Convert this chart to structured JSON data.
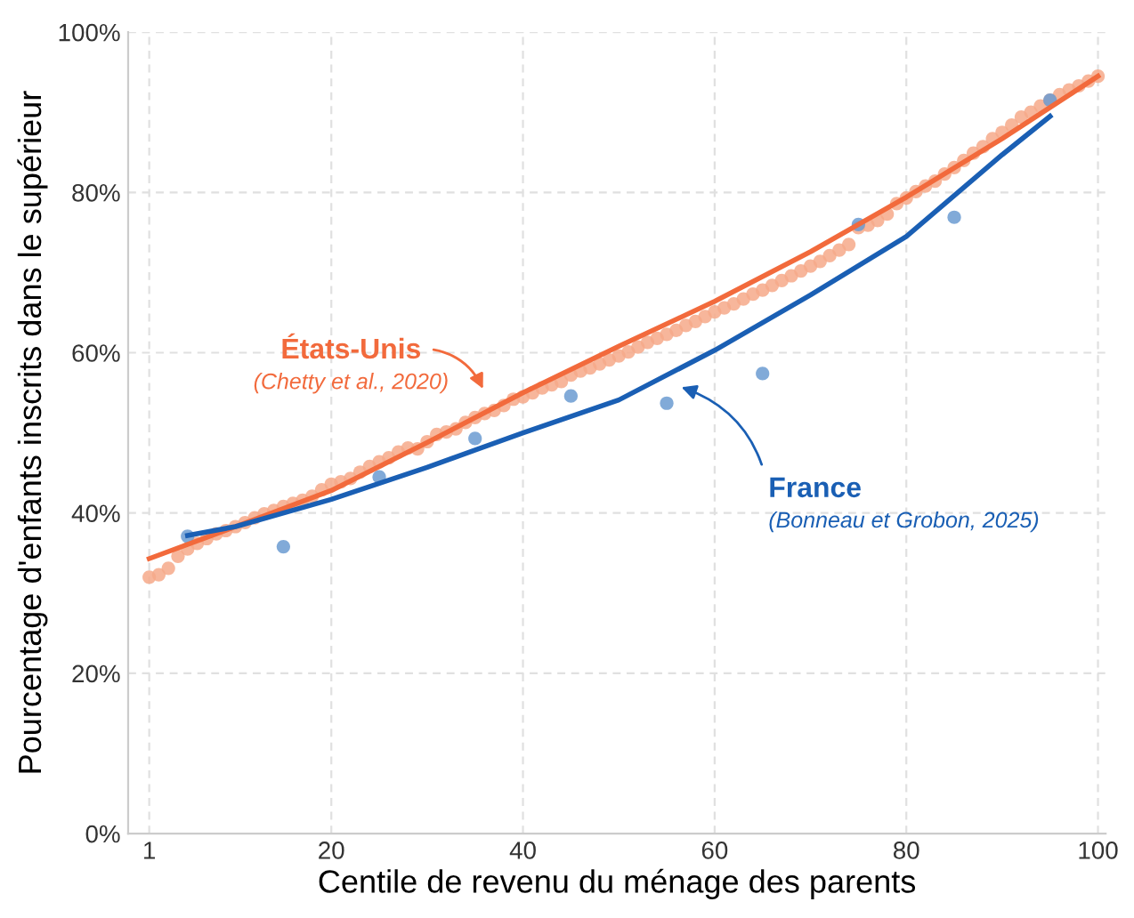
{
  "chart_data": {
    "type": "scatter",
    "xlabel": "Centile de revenu du ménage des parents",
    "ylabel": "Pourcentage d'enfants inscrits dans le supérieur",
    "xlim": [
      -1.2,
      100.8
    ],
    "ylim": [
      0,
      100
    ],
    "xticks": [
      1,
      20,
      40,
      60,
      80,
      100
    ],
    "yticks": [
      {
        "value": 0,
        "label": "0%"
      },
      {
        "value": 20,
        "label": "20%"
      },
      {
        "value": 40,
        "label": "40%"
      },
      {
        "value": 60,
        "label": "60%"
      },
      {
        "value": 80,
        "label": "80%"
      },
      {
        "value": 100,
        "label": "100%"
      }
    ],
    "grid": true,
    "series": [
      {
        "marker": "circle",
        "color": "#f6a989",
        "x": [
          1,
          2,
          3,
          4,
          5,
          6,
          7,
          8,
          9,
          10,
          11,
          12,
          13,
          14,
          15,
          16,
          17,
          18,
          19,
          20,
          21,
          22,
          23,
          24,
          25,
          26,
          27,
          28,
          29,
          30,
          31,
          32,
          33,
          34,
          35,
          36,
          37,
          38,
          39,
          40,
          41,
          42,
          43,
          44,
          45,
          46,
          47,
          48,
          49,
          50,
          51,
          52,
          53,
          54,
          55,
          56,
          57,
          58,
          59,
          60,
          61,
          62,
          63,
          64,
          65,
          66,
          67,
          68,
          69,
          70,
          71,
          72,
          73,
          74,
          75,
          76,
          77,
          78,
          79,
          80,
          81,
          82,
          83,
          84,
          85,
          86,
          87,
          88,
          89,
          90,
          91,
          92,
          93,
          94,
          95,
          96,
          97,
          98,
          99,
          100
        ],
        "values": [
          32.0,
          32.3,
          33.1,
          34.6,
          35.5,
          36.2,
          36.8,
          37.4,
          37.8,
          38.3,
          38.8,
          39.4,
          39.9,
          40.3,
          40.8,
          41.2,
          41.6,
          42.1,
          42.9,
          43.6,
          43.9,
          44.3,
          45.1,
          45.8,
          46.4,
          46.9,
          47.6,
          48.1,
          48.0,
          48.9,
          49.8,
          50.1,
          50.5,
          51.3,
          51.9,
          52.4,
          52.8,
          53.4,
          54.2,
          54.5,
          55.0,
          55.6,
          56.0,
          56.4,
          57.2,
          57.7,
          58.1,
          58.6,
          59.1,
          59.6,
          60.1,
          60.7,
          61.3,
          61.8,
          62.3,
          62.8,
          63.4,
          63.9,
          64.5,
          65.1,
          65.6,
          66.1,
          66.7,
          67.3,
          67.8,
          68.4,
          69.0,
          69.6,
          70.2,
          70.8,
          71.4,
          72.1,
          72.8,
          73.5,
          75.6,
          75.9,
          76.5,
          77.3,
          78.6,
          79.3,
          80.1,
          80.8,
          81.4,
          82.3,
          83.1,
          84.0,
          84.9,
          85.7,
          86.7,
          87.5,
          88.4,
          89.4,
          90.0,
          90.8,
          91.5,
          92.2,
          92.8,
          93.3,
          93.9,
          94.5
        ]
      },
      {
        "marker": "circle",
        "color": "#6b9bd1",
        "x": [
          5,
          15,
          25,
          35,
          45,
          55,
          65,
          75,
          85,
          95
        ],
        "values": [
          37.1,
          35.8,
          44.5,
          49.3,
          54.6,
          53.7,
          57.4,
          76.0,
          76.9,
          91.5
        ]
      },
      {
        "type": "line",
        "color": "#f26a3c",
        "x": [
          1,
          10,
          20,
          30,
          40,
          50,
          60,
          70,
          80,
          90,
          100
        ],
        "values": [
          34.3,
          38.3,
          42.8,
          48.8,
          55.0,
          60.8,
          66.4,
          72.6,
          79.4,
          86.7,
          94.5
        ]
      },
      {
        "type": "line",
        "color": "#1a5fb4",
        "x": [
          5,
          10,
          20,
          30,
          40,
          50,
          60,
          70,
          80,
          90,
          95
        ],
        "values": [
          37.2,
          38.3,
          41.7,
          45.7,
          50.0,
          54.1,
          60.3,
          67.2,
          74.5,
          84.7,
          89.5
        ]
      }
    ],
    "annotations": [
      "États-Unis",
      "(Chetty et al., 2020)",
      "France",
      "(Bonneau et Grobon, 2025)"
    ]
  }
}
